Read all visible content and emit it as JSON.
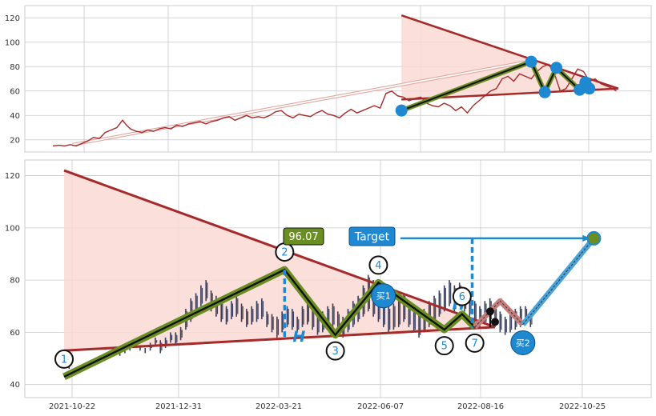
{
  "colors": {
    "panel_bg": "#eaeaf2",
    "grid": "#c8c8c8",
    "price_line": "#a52a2a",
    "triangle_line": "#a52a2a",
    "triangle_fill": "#f9d9d5",
    "zigzag_outer": "#6b8e23",
    "zigzag_inner": "#111111",
    "point_blue": "#1e88d0",
    "target_blue": "#1e88d0",
    "buy_blue": "#1e88d0",
    "candle": "#3a3f5c",
    "projection_red": "#c87d7d",
    "projection_blue": "#4aa3d8",
    "label_green": "#6b8e23"
  },
  "chart_data": [
    {
      "type": "line",
      "panel": "overview",
      "ylim": [
        10,
        130
      ],
      "yticks": [
        "20",
        "40",
        "60",
        "80",
        "100",
        "120"
      ],
      "series": [
        {
          "values": [
            [
              0,
              15
            ],
            [
              3,
              15.5
            ],
            [
              6,
              15
            ],
            [
              9,
              16
            ],
            [
              12,
              15
            ],
            [
              15,
              17
            ],
            [
              18,
              19
            ],
            [
              21,
              22
            ],
            [
              24,
              21
            ],
            [
              27,
              26
            ],
            [
              30,
              28
            ],
            [
              33,
              30
            ],
            [
              36,
              36
            ],
            [
              38,
              32
            ],
            [
              40,
              29
            ],
            [
              43,
              27
            ],
            [
              46,
              26
            ],
            [
              49,
              28
            ],
            [
              52,
              27
            ],
            [
              55,
              29
            ],
            [
              58,
              30
            ],
            [
              61,
              29
            ],
            [
              64,
              32
            ],
            [
              67,
              31
            ],
            [
              70,
              33
            ],
            [
              73,
              34
            ],
            [
              76,
              35
            ],
            [
              79,
              33
            ],
            [
              82,
              35
            ],
            [
              85,
              36
            ],
            [
              88,
              38
            ],
            [
              91,
              39
            ],
            [
              94,
              36
            ],
            [
              97,
              38
            ],
            [
              100,
              40
            ],
            [
              103,
              38
            ],
            [
              106,
              39
            ],
            [
              109,
              38
            ],
            [
              112,
              40
            ],
            [
              115,
              43
            ],
            [
              118,
              44
            ],
            [
              121,
              40
            ],
            [
              124,
              38
            ],
            [
              127,
              41
            ],
            [
              130,
              40
            ],
            [
              133,
              39
            ],
            [
              136,
              42
            ],
            [
              139,
              44
            ],
            [
              142,
              41
            ],
            [
              145,
              40
            ],
            [
              148,
              38
            ],
            [
              151,
              42
            ],
            [
              154,
              45
            ],
            [
              157,
              42
            ],
            [
              160,
              44
            ],
            [
              163,
              46
            ],
            [
              166,
              48
            ],
            [
              169,
              46
            ],
            [
              172,
              58
            ],
            [
              175,
              60
            ],
            [
              178,
              56
            ],
            [
              181,
              55
            ],
            [
              184,
              52
            ],
            [
              187,
              54
            ],
            [
              190,
              55
            ],
            [
              193,
              50
            ],
            [
              196,
              48
            ],
            [
              199,
              47
            ],
            [
              202,
              50
            ],
            [
              205,
              48
            ],
            [
              208,
              44
            ],
            [
              211,
              47
            ],
            [
              214,
              42
            ],
            [
              217,
              48
            ],
            [
              220,
              52
            ],
            [
              223,
              56
            ],
            [
              226,
              60
            ],
            [
              229,
              62
            ],
            [
              232,
              70
            ],
            [
              235,
              72
            ],
            [
              238,
              68
            ],
            [
              241,
              74
            ],
            [
              244,
              72
            ],
            [
              247,
              70
            ],
            [
              250,
              76
            ],
            [
              253,
              80
            ],
            [
              256,
              82
            ],
            [
              259,
              74
            ],
            [
              262,
              60
            ],
            [
              265,
              62
            ],
            [
              268,
              70
            ],
            [
              271,
              78
            ],
            [
              274,
              76
            ],
            [
              277,
              68
            ],
            [
              280,
              70
            ],
            [
              283,
              66
            ],
            [
              286,
              64
            ],
            [
              289,
              62
            ],
            [
              291,
              60
            ]
          ]
        }
      ],
      "zigzag_points": [
        [
          180,
          44
        ],
        [
          247,
          84
        ],
        [
          254,
          59
        ],
        [
          260,
          79
        ],
        [
          272,
          61
        ],
        [
          275,
          67
        ],
        [
          277,
          62
        ]
      ],
      "triangle": {
        "upper": [
          [
            180,
            122
          ],
          [
            292,
            62
          ]
        ],
        "lower": [
          [
            180,
            53
          ],
          [
            292,
            62
          ]
        ]
      },
      "arrow": {
        "from": [
          10,
          16
        ],
        "to": [
          245,
          84
        ]
      }
    },
    {
      "type": "line",
      "panel": "detail",
      "ylim": [
        35,
        126
      ],
      "yticks": [
        "40",
        "60",
        "80",
        "100",
        "120"
      ],
      "xticks": [
        "2021-10-22",
        "2021-12-31",
        "2022-03-21",
        "2022-06-07",
        "2022-08-16",
        "2022-10-25"
      ],
      "candles": [
        [
          0,
          47,
          48
        ],
        [
          2,
          46,
          48
        ],
        [
          4,
          44,
          46
        ],
        [
          6,
          45,
          47
        ],
        [
          8,
          46,
          48
        ],
        [
          10,
          47,
          49
        ],
        [
          12,
          48,
          50
        ],
        [
          14,
          49,
          51
        ],
        [
          16,
          49,
          51
        ],
        [
          18,
          50,
          52
        ],
        [
          20,
          51,
          53
        ],
        [
          22,
          51,
          53
        ],
        [
          24,
          52,
          54
        ],
        [
          26,
          53,
          55
        ],
        [
          28,
          54,
          56
        ],
        [
          30,
          53,
          55
        ],
        [
          32,
          52,
          54
        ],
        [
          34,
          53,
          56
        ],
        [
          36,
          55,
          58
        ],
        [
          38,
          52,
          57
        ],
        [
          40,
          54,
          58
        ],
        [
          42,
          56,
          60
        ],
        [
          44,
          55,
          60
        ],
        [
          46,
          57,
          62
        ],
        [
          48,
          61,
          69
        ],
        [
          50,
          64,
          73
        ],
        [
          52,
          66,
          75
        ],
        [
          54,
          70,
          78
        ],
        [
          56,
          72,
          80
        ],
        [
          58,
          68,
          76
        ],
        [
          60,
          66,
          74
        ],
        [
          62,
          64,
          72
        ],
        [
          64,
          63,
          70
        ],
        [
          66,
          65,
          72
        ],
        [
          68,
          66,
          74
        ],
        [
          70,
          64,
          71
        ],
        [
          72,
          62,
          69
        ],
        [
          74,
          63,
          70
        ],
        [
          76,
          64,
          72
        ],
        [
          78,
          65,
          73
        ],
        [
          80,
          62,
          68
        ],
        [
          82,
          60,
          67
        ],
        [
          84,
          58,
          66
        ],
        [
          86,
          60,
          68
        ],
        [
          88,
          62,
          70
        ],
        [
          90,
          61,
          69
        ],
        [
          92,
          60,
          66
        ],
        [
          94,
          62,
          70
        ],
        [
          96,
          63,
          72
        ],
        [
          98,
          61,
          69
        ],
        [
          100,
          59,
          67
        ],
        [
          102,
          60,
          68
        ],
        [
          104,
          61,
          70
        ],
        [
          106,
          62,
          71
        ],
        [
          108,
          60,
          68
        ],
        [
          110,
          58,
          66
        ],
        [
          112,
          60,
          69
        ],
        [
          114,
          62,
          72
        ],
        [
          116,
          64,
          74
        ],
        [
          118,
          66,
          78
        ],
        [
          120,
          68,
          82
        ],
        [
          122,
          66,
          80
        ],
        [
          124,
          64,
          76
        ],
        [
          126,
          62,
          72
        ],
        [
          128,
          60,
          70
        ],
        [
          130,
          61,
          71
        ],
        [
          132,
          62,
          73
        ],
        [
          134,
          64,
          75
        ],
        [
          136,
          62,
          72
        ],
        [
          138,
          60,
          70
        ],
        [
          140,
          58,
          68
        ],
        [
          142,
          60,
          69
        ],
        [
          144,
          62,
          72
        ],
        [
          146,
          64,
          74
        ],
        [
          148,
          66,
          76
        ],
        [
          150,
          68,
          78
        ],
        [
          152,
          70,
          80
        ],
        [
          154,
          68,
          78
        ],
        [
          156,
          70,
          79
        ],
        [
          158,
          68,
          77
        ],
        [
          160,
          66,
          75
        ],
        [
          162,
          64,
          72
        ],
        [
          164,
          62,
          70
        ],
        [
          166,
          63,
          72
        ],
        [
          168,
          64,
          73
        ],
        [
          170,
          62,
          70
        ],
        [
          172,
          60,
          68
        ],
        [
          174,
          59,
          66
        ],
        [
          176,
          60,
          67
        ],
        [
          178,
          61,
          69
        ],
        [
          180,
          62,
          70
        ],
        [
          182,
          63,
          70
        ],
        [
          184,
          62,
          68
        ]
      ],
      "zigzag_points": [
        [
          0,
          43
        ],
        [
          87,
          84
        ],
        [
          107,
          59
        ],
        [
          124,
          79
        ],
        [
          150,
          61
        ],
        [
          157,
          67
        ],
        [
          162,
          62
        ]
      ],
      "point_labels": [
        "1",
        "2",
        "3",
        "4",
        "5",
        "6",
        "7"
      ],
      "triangle": {
        "upper": [
          [
            0,
            122
          ],
          [
            170,
            62
          ]
        ],
        "lower": [
          [
            0,
            53
          ],
          [
            170,
            62
          ]
        ]
      },
      "annotations": {
        "price_label": "96.07",
        "target_label": "Target",
        "height_label": "H",
        "buy1_label": "买1",
        "buy2_label": "买2"
      },
      "projection": {
        "red": [
          [
            162,
            62
          ],
          [
            172,
            72
          ],
          [
            181,
            63
          ]
        ],
        "blue": [
          [
            181,
            63
          ],
          [
            209,
            96
          ]
        ],
        "buy1": [
          126,
          74
        ],
        "buy2": [
          181,
          56
        ],
        "target": [
          209,
          96
        ]
      },
      "target_line_y": 96,
      "height_bar": {
        "x1": 87,
        "y1": 84,
        "y2": 58
      },
      "height_bar2": {
        "x1": 161,
        "y1": 96,
        "y2": 62
      }
    }
  ]
}
